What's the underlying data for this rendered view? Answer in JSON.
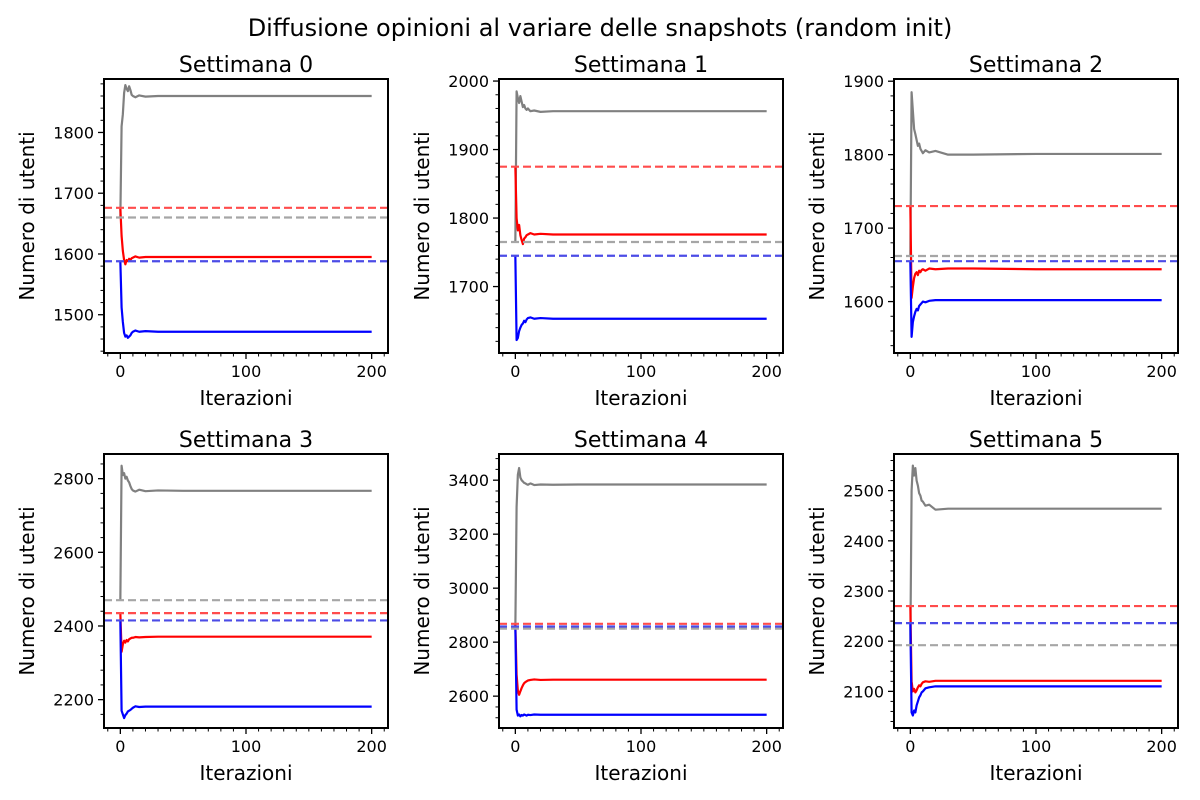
{
  "figure": {
    "title": "Diffusione opinioni al variare delle snapshots (random init)"
  },
  "chart_data": [
    {
      "type": "line",
      "title": "Settimana 0",
      "xlabel": "Iterazioni",
      "ylabel": "Numero di utenti",
      "xlim": [
        -13,
        213
      ],
      "ylim": [
        1437,
        1888
      ],
      "xticks": [
        0,
        100,
        200
      ],
      "yticks": [
        1500,
        1600,
        1700,
        1800
      ],
      "series": [
        {
          "color": "#808080",
          "style": "solid",
          "x": [
            0,
            1,
            2,
            3,
            4,
            5,
            6,
            7,
            8,
            9,
            10,
            12,
            15,
            20,
            30,
            50,
            100,
            200
          ],
          "y": [
            1660,
            1810,
            1830,
            1865,
            1878,
            1872,
            1868,
            1876,
            1870,
            1862,
            1860,
            1858,
            1861,
            1859,
            1860,
            1860,
            1860,
            1860
          ]
        },
        {
          "color": "#ff0000",
          "style": "solid",
          "x": [
            0,
            1,
            2,
            3,
            4,
            5,
            6,
            7,
            8,
            9,
            10,
            12,
            15,
            20,
            30,
            50,
            100,
            200
          ],
          "y": [
            1676,
            1630,
            1605,
            1590,
            1583,
            1590,
            1588,
            1592,
            1590,
            1593,
            1594,
            1596,
            1594,
            1595,
            1595,
            1595,
            1595,
            1595
          ]
        },
        {
          "color": "#0000ff",
          "style": "solid",
          "x": [
            0,
            1,
            2,
            3,
            4,
            5,
            6,
            7,
            8,
            9,
            10,
            12,
            15,
            20,
            30,
            50,
            100,
            200
          ],
          "y": [
            1588,
            1512,
            1488,
            1470,
            1464,
            1466,
            1462,
            1464,
            1466,
            1470,
            1472,
            1474,
            1472,
            1473,
            1472,
            1472,
            1472,
            1472
          ]
        },
        {
          "color": "#ff4c4c",
          "style": "dashed",
          "x": [
            -13,
            213
          ],
          "y": [
            1676,
            1676
          ]
        },
        {
          "color": "#a6a6a6",
          "style": "dashed",
          "x": [
            -13,
            213
          ],
          "y": [
            1660,
            1660
          ]
        },
        {
          "color": "#4c4ce6",
          "style": "dashed",
          "x": [
            -13,
            213
          ],
          "y": [
            1588,
            1588
          ]
        }
      ]
    },
    {
      "type": "line",
      "title": "Settimana 1",
      "xlabel": "Iterazioni",
      "ylabel": "Numero di utenti",
      "xlim": [
        -13,
        213
      ],
      "ylim": [
        1603,
        2003
      ],
      "xticks": [
        0,
        100,
        200
      ],
      "yticks": [
        1700,
        1800,
        1900,
        2000
      ],
      "series": [
        {
          "color": "#808080",
          "style": "solid",
          "x": [
            0,
            1,
            2,
            3,
            4,
            5,
            6,
            7,
            8,
            9,
            10,
            12,
            15,
            20,
            30,
            50,
            100,
            200
          ],
          "y": [
            1765,
            1985,
            1975,
            1968,
            1978,
            1970,
            1962,
            1965,
            1960,
            1958,
            1960,
            1956,
            1957,
            1955,
            1956,
            1956,
            1956,
            1956
          ]
        },
        {
          "color": "#ff0000",
          "style": "solid",
          "x": [
            0,
            1,
            2,
            3,
            4,
            5,
            6,
            7,
            8,
            9,
            10,
            12,
            15,
            20,
            30,
            50,
            100,
            200
          ],
          "y": [
            1875,
            1800,
            1782,
            1790,
            1775,
            1768,
            1762,
            1770,
            1772,
            1775,
            1776,
            1778,
            1776,
            1777,
            1776,
            1776,
            1776,
            1776
          ]
        },
        {
          "color": "#0000ff",
          "style": "solid",
          "x": [
            0,
            1,
            2,
            3,
            4,
            5,
            6,
            7,
            8,
            9,
            10,
            12,
            15,
            20,
            30,
            50,
            100,
            200
          ],
          "y": [
            1745,
            1622,
            1625,
            1635,
            1640,
            1644,
            1646,
            1650,
            1648,
            1652,
            1654,
            1655,
            1653,
            1654,
            1653,
            1653,
            1653,
            1653
          ]
        },
        {
          "color": "#ff4c4c",
          "style": "dashed",
          "x": [
            -13,
            213
          ],
          "y": [
            1875,
            1875
          ]
        },
        {
          "color": "#a6a6a6",
          "style": "dashed",
          "x": [
            -13,
            213
          ],
          "y": [
            1765,
            1765
          ]
        },
        {
          "color": "#4c4ce6",
          "style": "dashed",
          "x": [
            -13,
            213
          ],
          "y": [
            1745,
            1745
          ]
        }
      ]
    },
    {
      "type": "line",
      "title": "Settimana 2",
      "xlabel": "Iterazioni",
      "ylabel": "Numero di utenti",
      "xlim": [
        -13,
        213
      ],
      "ylim": [
        1530,
        1903
      ],
      "xticks": [
        0,
        100,
        200
      ],
      "yticks": [
        1600,
        1700,
        1800,
        1900
      ],
      "series": [
        {
          "color": "#808080",
          "style": "solid",
          "x": [
            0,
            1,
            2,
            3,
            4,
            5,
            6,
            7,
            8,
            9,
            10,
            12,
            15,
            20,
            30,
            50,
            100,
            200
          ],
          "y": [
            1662,
            1885,
            1860,
            1835,
            1828,
            1820,
            1812,
            1815,
            1808,
            1805,
            1802,
            1806,
            1803,
            1805,
            1800,
            1800,
            1801,
            1801
          ]
        },
        {
          "color": "#ff0000",
          "style": "solid",
          "x": [
            0,
            1,
            2,
            3,
            4,
            5,
            6,
            7,
            8,
            9,
            10,
            12,
            15,
            20,
            30,
            50,
            100,
            200
          ],
          "y": [
            1730,
            1605,
            1620,
            1632,
            1638,
            1640,
            1636,
            1642,
            1640,
            1643,
            1644,
            1642,
            1645,
            1644,
            1645,
            1645,
            1644,
            1644
          ]
        },
        {
          "color": "#0000ff",
          "style": "solid",
          "x": [
            0,
            1,
            2,
            3,
            4,
            5,
            6,
            7,
            8,
            9,
            10,
            12,
            15,
            20,
            30,
            50,
            100,
            200
          ],
          "y": [
            1655,
            1552,
            1572,
            1580,
            1586,
            1590,
            1588,
            1594,
            1596,
            1598,
            1600,
            1599,
            1601,
            1602,
            1602,
            1602,
            1602,
            1602
          ]
        },
        {
          "color": "#ff4c4c",
          "style": "dashed",
          "x": [
            -13,
            213
          ],
          "y": [
            1730,
            1730
          ]
        },
        {
          "color": "#a6a6a6",
          "style": "dashed",
          "x": [
            -13,
            213
          ],
          "y": [
            1662,
            1662
          ]
        },
        {
          "color": "#4c4ce6",
          "style": "dashed",
          "x": [
            -13,
            213
          ],
          "y": [
            1655,
            1655
          ]
        }
      ]
    },
    {
      "type": "line",
      "title": "Settimana 3",
      "xlabel": "Iterazioni",
      "ylabel": "Numero di utenti",
      "xlim": [
        -13,
        213
      ],
      "ylim": [
        2123,
        2867
      ],
      "xticks": [
        0,
        100,
        200
      ],
      "yticks": [
        2200,
        2400,
        2600,
        2800
      ],
      "series": [
        {
          "color": "#808080",
          "style": "solid",
          "x": [
            0,
            1,
            2,
            3,
            4,
            5,
            6,
            7,
            8,
            9,
            10,
            12,
            15,
            20,
            30,
            50,
            100,
            200
          ],
          "y": [
            2470,
            2835,
            2810,
            2815,
            2800,
            2805,
            2795,
            2790,
            2780,
            2772,
            2768,
            2765,
            2770,
            2766,
            2768,
            2767,
            2767,
            2767
          ]
        },
        {
          "color": "#ff0000",
          "style": "solid",
          "x": [
            0,
            1,
            2,
            3,
            4,
            5,
            6,
            7,
            8,
            9,
            10,
            12,
            15,
            20,
            30,
            50,
            100,
            200
          ],
          "y": [
            2435,
            2330,
            2350,
            2360,
            2355,
            2362,
            2358,
            2364,
            2366,
            2368,
            2368,
            2370,
            2369,
            2370,
            2371,
            2371,
            2371,
            2371
          ]
        },
        {
          "color": "#0000ff",
          "style": "solid",
          "x": [
            0,
            1,
            2,
            3,
            4,
            5,
            6,
            7,
            8,
            9,
            10,
            12,
            15,
            20,
            30,
            50,
            100,
            200
          ],
          "y": [
            2415,
            2170,
            2160,
            2150,
            2158,
            2162,
            2168,
            2170,
            2172,
            2175,
            2178,
            2182,
            2180,
            2181,
            2181,
            2181,
            2181,
            2181
          ]
        },
        {
          "color": "#ff4c4c",
          "style": "dashed",
          "x": [
            -13,
            213
          ],
          "y": [
            2435,
            2435
          ]
        },
        {
          "color": "#a6a6a6",
          "style": "dashed",
          "x": [
            -13,
            213
          ],
          "y": [
            2470,
            2470
          ]
        },
        {
          "color": "#4c4ce6",
          "style": "dashed",
          "x": [
            -13,
            213
          ],
          "y": [
            2415,
            2415
          ]
        }
      ]
    },
    {
      "type": "line",
      "title": "Settimana 4",
      "xlabel": "Iterazioni",
      "ylabel": "Numero di utenti",
      "xlim": [
        -13,
        213
      ],
      "ylim": [
        2482,
        3497
      ],
      "xticks": [
        0,
        100,
        200
      ],
      "yticks": [
        2600,
        2800,
        3000,
        3200,
        3400
      ],
      "series": [
        {
          "color": "#808080",
          "style": "solid",
          "x": [
            0,
            1,
            2,
            3,
            4,
            5,
            6,
            7,
            8,
            9,
            10,
            12,
            15,
            20,
            30,
            50,
            100,
            200
          ],
          "y": [
            2850,
            3300,
            3420,
            3445,
            3410,
            3400,
            3395,
            3390,
            3388,
            3385,
            3383,
            3388,
            3382,
            3384,
            3383,
            3384,
            3384,
            3384
          ]
        },
        {
          "color": "#ff0000",
          "style": "solid",
          "x": [
            0,
            1,
            2,
            3,
            4,
            5,
            6,
            7,
            8,
            9,
            10,
            12,
            15,
            20,
            30,
            50,
            100,
            200
          ],
          "y": [
            2868,
            2680,
            2620,
            2605,
            2618,
            2630,
            2640,
            2648,
            2652,
            2655,
            2658,
            2660,
            2662,
            2660,
            2661,
            2661,
            2661,
            2661
          ]
        },
        {
          "color": "#0000ff",
          "style": "solid",
          "x": [
            0,
            1,
            2,
            3,
            4,
            5,
            6,
            7,
            8,
            9,
            10,
            12,
            15,
            20,
            30,
            50,
            100,
            200
          ],
          "y": [
            2858,
            2550,
            2528,
            2532,
            2525,
            2530,
            2528,
            2532,
            2530,
            2528,
            2531,
            2530,
            2532,
            2531,
            2531,
            2531,
            2531,
            2531
          ]
        },
        {
          "color": "#ff4c4c",
          "style": "dashed",
          "x": [
            -13,
            213
          ],
          "y": [
            2868,
            2868
          ]
        },
        {
          "color": "#a6a6a6",
          "style": "dashed",
          "x": [
            -13,
            213
          ],
          "y": [
            2850,
            2850
          ]
        },
        {
          "color": "#4c4ce6",
          "style": "dashed",
          "x": [
            -13,
            213
          ],
          "y": [
            2858,
            2858
          ]
        }
      ]
    },
    {
      "type": "line",
      "title": "Settimana 5",
      "xlabel": "Iterazioni",
      "ylabel": "Numero di utenti",
      "xlim": [
        -13,
        213
      ],
      "ylim": [
        2027,
        2573
      ],
      "xticks": [
        0,
        100,
        200
      ],
      "yticks": [
        2100,
        2200,
        2300,
        2400,
        2500
      ],
      "series": [
        {
          "color": "#808080",
          "style": "solid",
          "x": [
            0,
            1,
            2,
            3,
            4,
            5,
            6,
            7,
            8,
            9,
            10,
            12,
            15,
            20,
            30,
            50,
            100,
            200
          ],
          "y": [
            2192,
            2500,
            2550,
            2530,
            2545,
            2520,
            2510,
            2495,
            2490,
            2480,
            2478,
            2470,
            2472,
            2462,
            2464,
            2464,
            2464,
            2464
          ]
        },
        {
          "color": "#ff0000",
          "style": "solid",
          "x": [
            0,
            1,
            2,
            3,
            4,
            5,
            6,
            7,
            8,
            9,
            10,
            12,
            15,
            20,
            30,
            50,
            100,
            200
          ],
          "y": [
            2270,
            2120,
            2100,
            2105,
            2098,
            2102,
            2108,
            2112,
            2110,
            2115,
            2118,
            2120,
            2119,
            2121,
            2121,
            2121,
            2121,
            2121
          ]
        },
        {
          "color": "#0000ff",
          "style": "solid",
          "x": [
            0,
            1,
            2,
            3,
            4,
            5,
            6,
            7,
            8,
            9,
            10,
            12,
            15,
            20,
            30,
            50,
            100,
            200
          ],
          "y": [
            2236,
            2058,
            2052,
            2062,
            2058,
            2072,
            2080,
            2088,
            2092,
            2098,
            2100,
            2106,
            2108,
            2110,
            2110,
            2110,
            2110,
            2110
          ]
        },
        {
          "color": "#ff4c4c",
          "style": "dashed",
          "x": [
            -13,
            213
          ],
          "y": [
            2270,
            2270
          ]
        },
        {
          "color": "#a6a6a6",
          "style": "dashed",
          "x": [
            -13,
            213
          ],
          "y": [
            2192,
            2192
          ]
        },
        {
          "color": "#4c4ce6",
          "style": "dashed",
          "x": [
            -13,
            213
          ],
          "y": [
            2236,
            2236
          ]
        }
      ]
    }
  ]
}
